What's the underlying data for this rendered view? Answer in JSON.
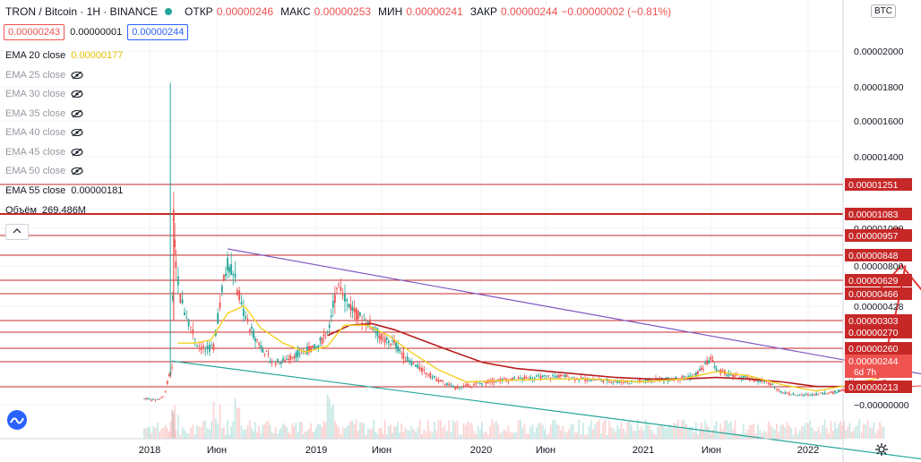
{
  "header": {
    "title": "TRON / Bitcoin · 1H · BINANCE",
    "open_label": "ОТКР",
    "open": "0.00000246",
    "high_label": "МАКС",
    "high": "0.00000253",
    "low_label": "МИН",
    "low": "0.00000241",
    "close_label": "ЗАКР",
    "close": "0.00000244",
    "change": "−0.00000002 (−0.81%)",
    "sell": "0.00000243",
    "spread": "0.00000001",
    "buy": "0.00000244"
  },
  "indicators": [
    {
      "name": "EMA 20 close",
      "value": "0.00000177",
      "visible": true
    },
    {
      "name": "EMA 25 close",
      "value": "",
      "visible": false
    },
    {
      "name": "EMA 30 close",
      "value": "",
      "visible": false
    },
    {
      "name": "EMA 35 close",
      "value": "",
      "visible": false
    },
    {
      "name": "EMA 40 close",
      "value": "",
      "visible": false
    },
    {
      "name": "EMA 45 close",
      "value": "",
      "visible": false
    },
    {
      "name": "EMA 50 close",
      "value": "",
      "visible": false
    },
    {
      "name": "EMA 55 close",
      "value": "0.00000181",
      "visible": true
    },
    {
      "name": "Объём",
      "value": "269.486M",
      "visible": true
    }
  ],
  "currency_badge": "BTC",
  "colors": {
    "up": "#26a69a",
    "down": "#ef5350",
    "ema20": "#f2d023",
    "ema55": "#b71c1c",
    "hline": "#c62828",
    "trend_top": "#7e57c2",
    "trend_bottom": "#26a69a",
    "label_bg": "#c62828"
  },
  "chart_data": {
    "type": "candlestick",
    "x_ticks": [
      "2018",
      "Июн",
      "2019",
      "Июн",
      "2020",
      "Июн",
      "2021",
      "Июн",
      "2022"
    ],
    "y_ticks": [
      "0.00002000",
      "0.00001800",
      "0.00001600",
      "0.00001400",
      "0.00001000",
      "0.00000800",
      "0.00000428",
      "0.00000000",
      "−0.00000000"
    ],
    "ylim": [
      -5e-07,
      2.15e-05
    ],
    "level_lines": [
      {
        "value": 1.251e-05,
        "label": "0.00001251",
        "heavy": false
      },
      {
        "value": 1.083e-05,
        "label": "0.00001083",
        "heavy": true
      },
      {
        "value": 9.57e-06,
        "label": "0.00000957",
        "heavy": false
      },
      {
        "value": 8.48e-06,
        "label": "0.00000848",
        "heavy": false
      },
      {
        "value": 6.29e-06,
        "label": "0.00000629",
        "heavy": false
      },
      {
        "value": 4.66e-06,
        "label": "0.00000466",
        "heavy": false
      },
      {
        "value": 3.03e-06,
        "label": "0.00000303",
        "heavy": false
      },
      {
        "value": 2.7e-06,
        "label": "0.00000270",
        "heavy": false
      },
      {
        "value": 2.6e-06,
        "label": "0.00000260",
        "heavy": false
      },
      {
        "value": 2.13e-06,
        "label": "0.00000213",
        "heavy": false
      }
    ],
    "last_price": {
      "value": 2.44e-06,
      "label": "0.00000244",
      "countdown": "6d 7h"
    },
    "price_path": [
      [
        0.5,
        3e-07
      ],
      [
        0.7,
        2e-07
      ],
      [
        0.85,
        4e-07
      ],
      [
        0.95,
        1.8e-06
      ],
      [
        1.0,
        2.2e-06
      ],
      [
        1.03,
        1.25e-05
      ],
      [
        1.07,
        9.5e-06
      ],
      [
        1.15,
        7e-06
      ],
      [
        1.3,
        5.5e-06
      ],
      [
        1.45,
        4e-06
      ],
      [
        1.6,
        3.5e-06
      ],
      [
        1.75,
        3.8e-06
      ],
      [
        1.9,
        7.5e-06
      ],
      [
        2.0,
        9.4e-06
      ],
      [
        2.1,
        8.8e-06
      ],
      [
        2.25,
        6.5e-06
      ],
      [
        2.4,
        5e-06
      ],
      [
        2.6,
        3.8e-06
      ],
      [
        2.8,
        2.7e-06
      ],
      [
        3.0,
        2.8e-06
      ],
      [
        3.2,
        3.2e-06
      ],
      [
        3.4,
        3.5e-06
      ],
      [
        3.6,
        3.7e-06
      ],
      [
        3.8,
        4.8e-06
      ],
      [
        4.0,
        8.3e-06
      ],
      [
        4.15,
        6.8e-06
      ],
      [
        4.35,
        5.8e-06
      ],
      [
        4.6,
        5.2e-06
      ],
      [
        4.8,
        4.2e-06
      ],
      [
        5.0,
        4e-06
      ],
      [
        5.2,
        3e-06
      ],
      [
        5.5,
        2.2e-06
      ],
      [
        5.8,
        1.5e-06
      ],
      [
        6.1,
        1e-06
      ],
      [
        6.4,
        1.2e-06
      ],
      [
        6.8,
        1.5e-06
      ],
      [
        7.2,
        1.6e-06
      ],
      [
        7.6,
        1.7e-06
      ],
      [
        8.0,
        1.8e-06
      ],
      [
        8.4,
        1.6e-06
      ],
      [
        8.8,
        1.5e-06
      ],
      [
        9.2,
        1.4e-06
      ],
      [
        9.6,
        1.5e-06
      ],
      [
        10.0,
        1.6e-06
      ],
      [
        10.4,
        1.8e-06
      ],
      [
        10.6,
        2.5e-06
      ],
      [
        10.7,
        3e-06
      ],
      [
        10.8,
        2.2e-06
      ],
      [
        11.1,
        1.8e-06
      ],
      [
        11.4,
        1.6e-06
      ],
      [
        11.7,
        1.4e-06
      ],
      [
        12.0,
        7e-07
      ],
      [
        12.3,
        5e-07
      ],
      [
        12.6,
        6e-07
      ],
      [
        12.9,
        7e-07
      ],
      [
        13.1,
        9e-07
      ],
      [
        13.3,
        1.8e-06
      ],
      [
        13.6,
        2.4e-06
      ],
      [
        13.85,
        2.6e-06
      ]
    ],
    "ema20": [
      [
        1.1,
        4e-06
      ],
      [
        1.4,
        4e-06
      ],
      [
        1.7,
        4.2e-06
      ],
      [
        2.0,
        6e-06
      ],
      [
        2.3,
        6.5e-06
      ],
      [
        2.6,
        5e-06
      ],
      [
        3.0,
        4e-06
      ],
      [
        3.4,
        3.4e-06
      ],
      [
        3.8,
        3.8e-06
      ],
      [
        4.1,
        5.2e-06
      ],
      [
        4.5,
        5.2e-06
      ],
      [
        4.9,
        4.5e-06
      ],
      [
        5.3,
        3.4e-06
      ],
      [
        5.8,
        2.2e-06
      ],
      [
        6.3,
        1.4e-06
      ],
      [
        7.0,
        1.5e-06
      ],
      [
        7.8,
        1.6e-06
      ],
      [
        8.6,
        1.6e-06
      ],
      [
        9.4,
        1.4e-06
      ],
      [
        10.2,
        1.6e-06
      ],
      [
        10.8,
        2.1e-06
      ],
      [
        11.4,
        1.8e-06
      ],
      [
        12.0,
        1.2e-06
      ],
      [
        12.6,
        8e-07
      ],
      [
        13.2,
        1.2e-06
      ],
      [
        13.85,
        1.8e-06
      ]
    ],
    "ema55": [
      [
        3.8,
        4.5e-06
      ],
      [
        4.2,
        5.2e-06
      ],
      [
        4.6,
        5.3e-06
      ],
      [
        5.0,
        4.9e-06
      ],
      [
        5.5,
        4.2e-06
      ],
      [
        6.0,
        3.5e-06
      ],
      [
        6.6,
        2.7e-06
      ],
      [
        7.2,
        2.3e-06
      ],
      [
        7.8,
        2.1e-06
      ],
      [
        8.4,
        1.9e-06
      ],
      [
        9.0,
        1.7e-06
      ],
      [
        9.6,
        1.6e-06
      ],
      [
        10.2,
        1.6e-06
      ],
      [
        10.8,
        1.7e-06
      ],
      [
        11.4,
        1.6e-06
      ],
      [
        12.0,
        1.4e-06
      ],
      [
        12.6,
        1.1e-06
      ],
      [
        13.2,
        1.1e-06
      ],
      [
        13.85,
        1.5e-06
      ]
    ],
    "trend_top": [
      [
        2.0,
        1.03e-05
      ],
      [
        15.3,
        1.4e-06
      ]
    ],
    "trend_bottom": [
      [
        1.0,
        2.8e-06
      ],
      [
        14.6,
        -3.8e-06
      ]
    ],
    "support": [
      [
        13.0,
        8e-07
      ],
      [
        15.6,
        1.4e-06
      ]
    ],
    "handwritten_target": {
      "x": 14.05,
      "y": 1.13e-05
    },
    "arrow": {
      "from": [
        13.7,
        1.6e-06
      ],
      "to": [
        14.2,
        9.2e-06
      ]
    }
  }
}
